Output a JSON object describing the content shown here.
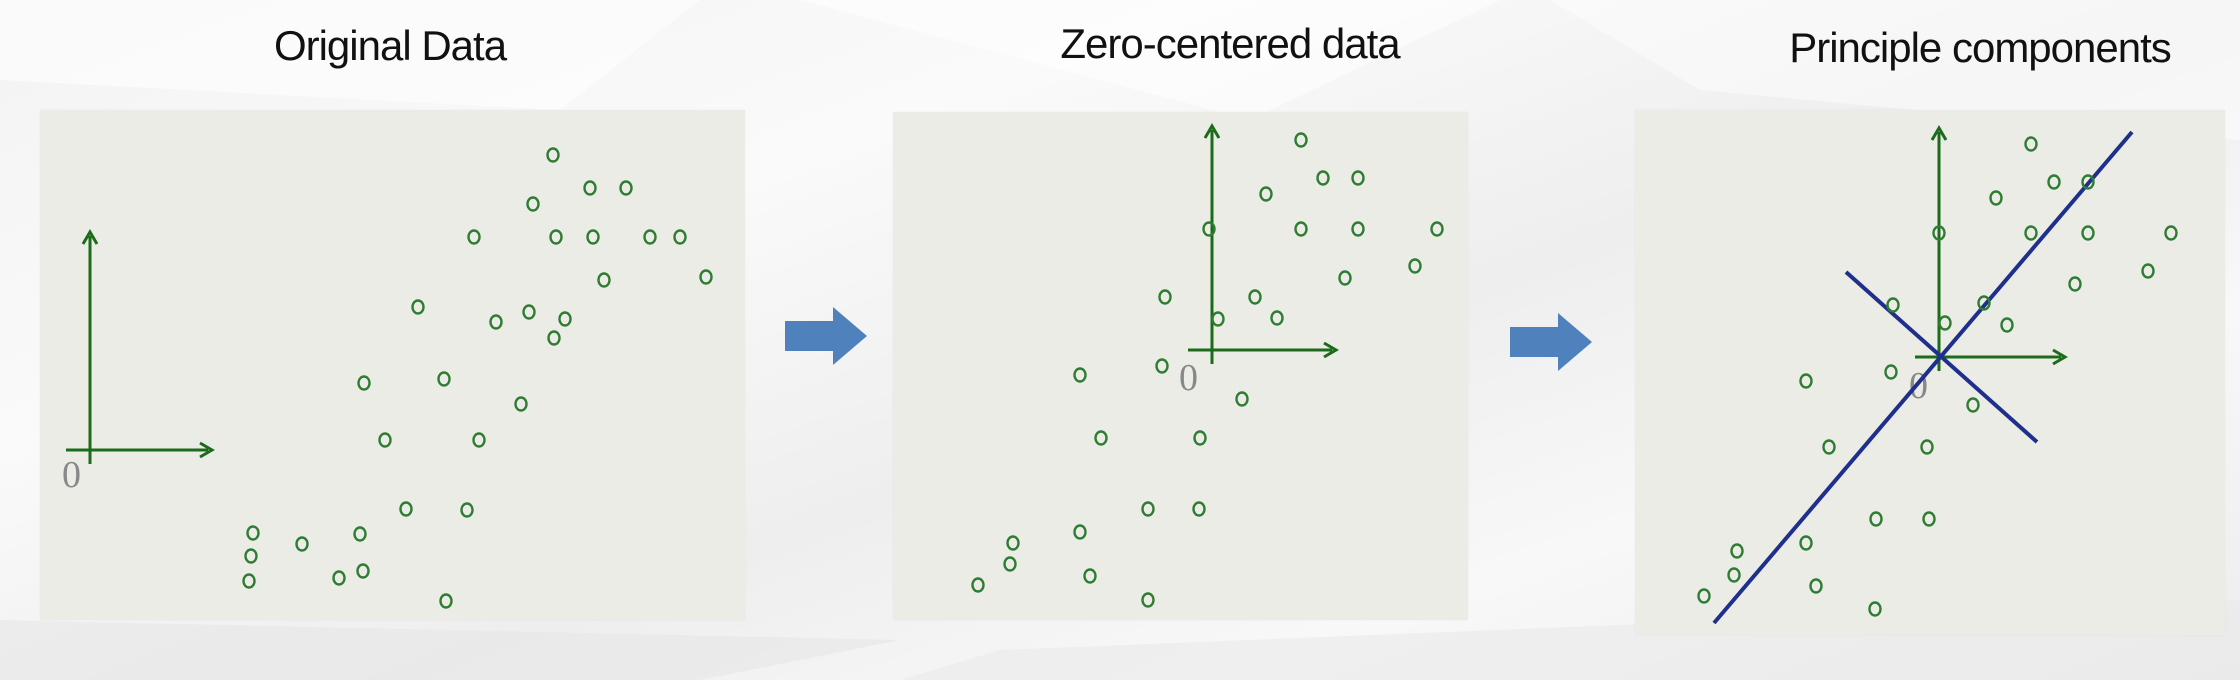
{
  "panels": [
    {
      "title": "Original Data",
      "origin_label": "0",
      "points": [
        [
          553,
          155
        ],
        [
          590,
          188
        ],
        [
          626,
          188
        ],
        [
          533,
          204
        ],
        [
          474,
          237
        ],
        [
          556,
          237
        ],
        [
          593,
          237
        ],
        [
          650,
          237
        ],
        [
          680,
          237
        ],
        [
          604,
          280
        ],
        [
          706,
          277
        ],
        [
          418,
          307
        ],
        [
          529,
          312
        ],
        [
          496,
          322
        ],
        [
          565,
          319
        ],
        [
          554,
          338
        ],
        [
          364,
          383
        ],
        [
          444,
          379
        ],
        [
          521,
          404
        ],
        [
          385,
          440
        ],
        [
          479,
          440
        ],
        [
          467,
          510
        ],
        [
          406,
          509
        ],
        [
          253,
          533
        ],
        [
          360,
          534
        ],
        [
          302,
          544
        ],
        [
          251,
          556
        ],
        [
          363,
          571
        ],
        [
          249,
          581
        ],
        [
          339,
          578
        ],
        [
          446,
          601
        ]
      ]
    },
    {
      "title": "Zero-centered data",
      "origin_label": "0",
      "points": [
        [
          1301,
          140
        ],
        [
          1323,
          178
        ],
        [
          1358,
          178
        ],
        [
          1266,
          194
        ],
        [
          1209,
          229
        ],
        [
          1301,
          229
        ],
        [
          1358,
          229
        ],
        [
          1437,
          229
        ],
        [
          1345,
          278
        ],
        [
          1415,
          266
        ],
        [
          1165,
          297
        ],
        [
          1255,
          297
        ],
        [
          1277,
          318
        ],
        [
          1218,
          319
        ],
        [
          1080,
          375
        ],
        [
          1162,
          366
        ],
        [
          1242,
          399
        ],
        [
          1101,
          438
        ],
        [
          1200,
          438
        ],
        [
          1148,
          509
        ],
        [
          1199,
          509
        ],
        [
          1080,
          532
        ],
        [
          1013,
          543
        ],
        [
          1010,
          564
        ],
        [
          1090,
          576
        ],
        [
          978,
          585
        ],
        [
          1148,
          600
        ]
      ]
    },
    {
      "title": "Principle components",
      "origin_label": "0",
      "points": [
        [
          2031,
          144
        ],
        [
          1996,
          198
        ],
        [
          2054,
          182
        ],
        [
          2088,
          182
        ],
        [
          1939,
          233
        ],
        [
          2031,
          233
        ],
        [
          2088,
          233
        ],
        [
          2171,
          233
        ],
        [
          2075,
          284
        ],
        [
          2148,
          271
        ],
        [
          1893,
          305
        ],
        [
          1984,
          303
        ],
        [
          2007,
          325
        ],
        [
          1945,
          323
        ],
        [
          1806,
          381
        ],
        [
          1891,
          372
        ],
        [
          1973,
          405
        ],
        [
          1829,
          447
        ],
        [
          1927,
          447
        ],
        [
          1876,
          519
        ],
        [
          1929,
          519
        ],
        [
          1806,
          543
        ],
        [
          1737,
          551
        ],
        [
          1734,
          575
        ],
        [
          1816,
          586
        ],
        [
          1704,
          596
        ],
        [
          1875,
          609
        ]
      ]
    }
  ],
  "colors": {
    "point": "#2f7d32",
    "axis": "#1b6b1b",
    "component_line": "#1f2f8c",
    "arrow": "#4f81bd",
    "origin_label": "#888888"
  },
  "icons": [
    "arrow-right-icon"
  ]
}
